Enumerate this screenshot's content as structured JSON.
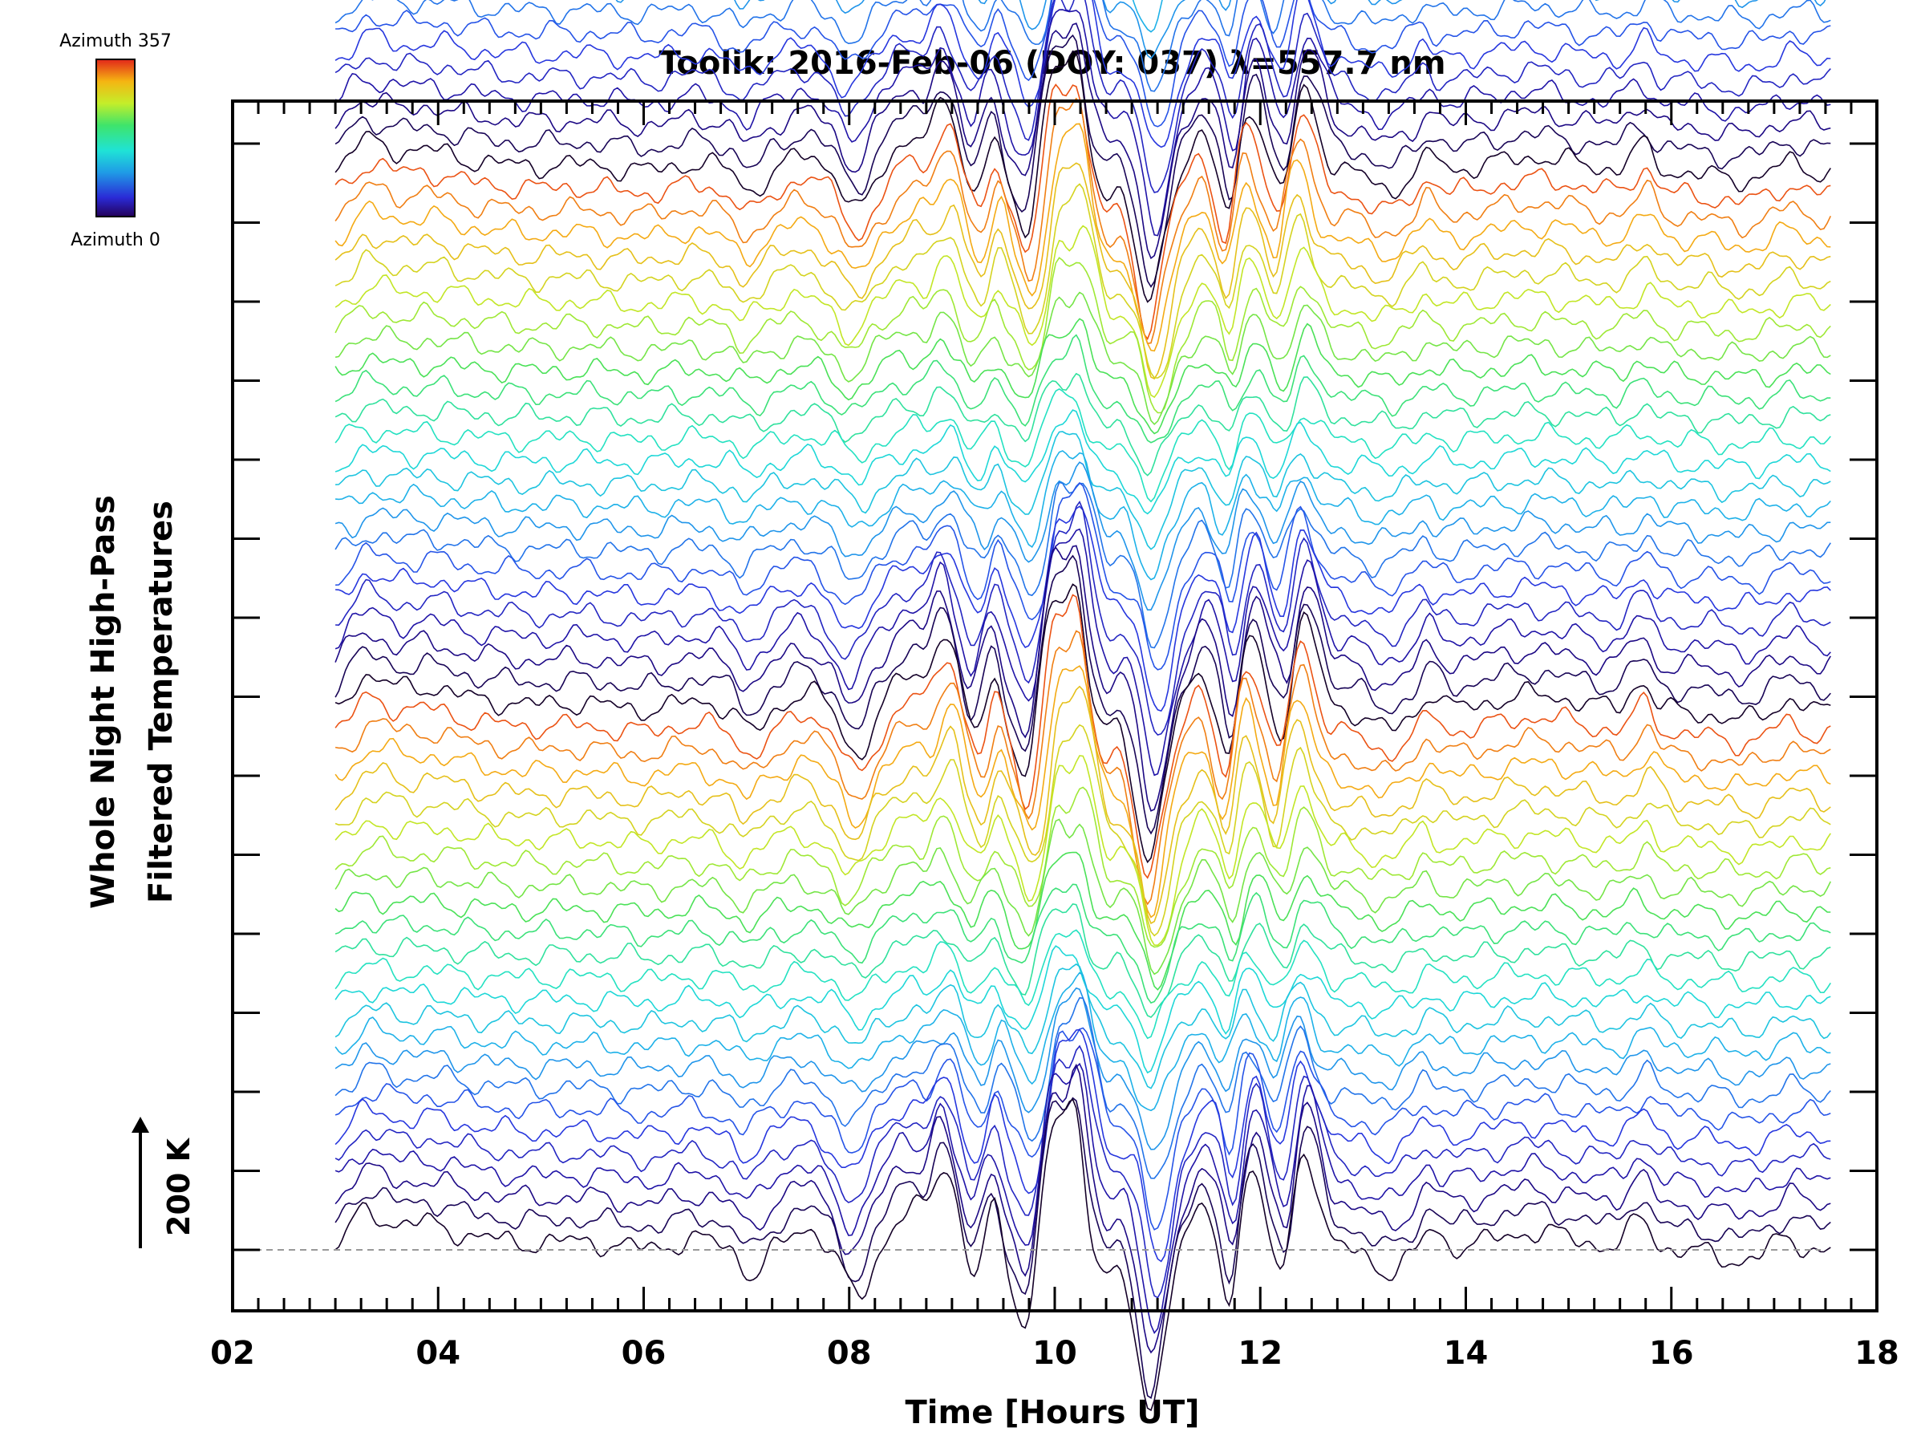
{
  "chart_data": {
    "type": "line",
    "title": "Toolik: 2016-Feb-06 (DOY: 037) λ=557.7 nm",
    "xlabel": "Time [Hours UT]",
    "ylabel_line1": "Whole Night High-Pass",
    "ylabel_line2": "Filtered Temperatures",
    "xlim": [
      2,
      18
    ],
    "x_ticks": [
      "02",
      "04",
      "06",
      "08",
      "10",
      "12",
      "14",
      "16",
      "18"
    ],
    "x_tick_values": [
      2,
      4,
      6,
      8,
      10,
      12,
      14,
      16,
      18
    ],
    "data_x_range": [
      3.0,
      17.55
    ],
    "scale_bar_label": "200 K",
    "scale_bar_kelvin": 200,
    "trace_offset_kelvin": 35,
    "n_traces": 144,
    "colorbar": {
      "top_label": "Azimuth 357",
      "bottom_label": "Azimuth 0",
      "azimuth_range": [
        0,
        357
      ],
      "colormap": "rainbow"
    },
    "azimuth_cycles": 6,
    "baseline_style": "dashed-gray",
    "features": [
      {
        "time": 3.05,
        "amp": -15,
        "width": 0.07
      },
      {
        "time": 3.3,
        "amp": 50,
        "width": 0.2
      },
      {
        "time": 3.9,
        "amp": 35,
        "width": 0.25
      },
      {
        "time": 4.5,
        "amp": 15,
        "width": 0.3
      },
      {
        "time": 5.4,
        "amp": 12,
        "width": 0.35
      },
      {
        "time": 6.5,
        "amp": 15,
        "width": 0.2
      },
      {
        "time": 7.0,
        "amp": -35,
        "width": 0.1
      },
      {
        "time": 7.5,
        "amp": 30,
        "width": 0.15
      },
      {
        "time": 8.0,
        "amp": -70,
        "width": 0.12
      },
      {
        "time": 8.55,
        "amp": 60,
        "width": 0.18
      },
      {
        "time": 8.9,
        "amp": 110,
        "width": 0.1
      },
      {
        "time": 9.2,
        "amp": -40,
        "width": 0.06
      },
      {
        "time": 9.4,
        "amp": 60,
        "width": 0.07
      },
      {
        "time": 9.75,
        "amp": -110,
        "width": 0.12
      },
      {
        "time": 10.0,
        "amp": 170,
        "width": 0.1
      },
      {
        "time": 10.25,
        "amp": 190,
        "width": 0.1
      },
      {
        "time": 10.55,
        "amp": -30,
        "width": 0.1
      },
      {
        "time": 11.0,
        "amp": -230,
        "width": 0.13
      },
      {
        "time": 11.5,
        "amp": 60,
        "width": 0.12
      },
      {
        "time": 11.75,
        "amp": -90,
        "width": 0.08
      },
      {
        "time": 11.95,
        "amp": 120,
        "width": 0.1
      },
      {
        "time": 12.25,
        "amp": -60,
        "width": 0.06
      },
      {
        "time": 12.45,
        "amp": 140,
        "width": 0.12
      },
      {
        "time": 13.2,
        "amp": -30,
        "width": 0.15
      },
      {
        "time": 13.6,
        "amp": 30,
        "width": 0.08
      },
      {
        "time": 14.6,
        "amp": 25,
        "width": 0.4
      },
      {
        "time": 15.7,
        "amp": 45,
        "width": 0.1
      },
      {
        "time": 16.7,
        "amp": -15,
        "width": 0.2
      },
      {
        "time": 17.2,
        "amp": 15,
        "width": 0.12
      }
    ]
  }
}
